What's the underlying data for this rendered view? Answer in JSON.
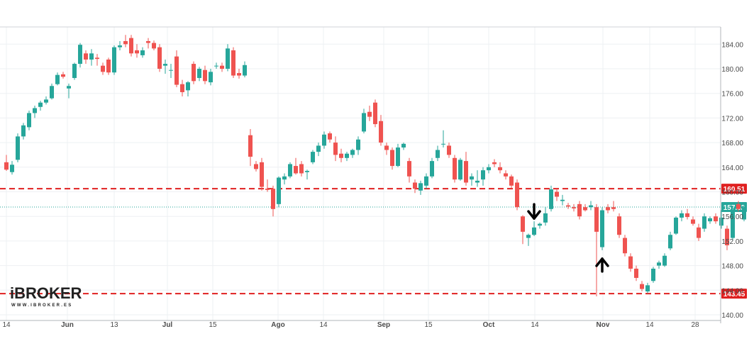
{
  "chart_data": {
    "type": "candlestick",
    "ylim": [
      139.0,
      186.0
    ],
    "y_ticks": [
      "184.00",
      "180.00",
      "176.00",
      "172.00",
      "168.00",
      "164.00",
      "160.00",
      "156.00",
      "152.00",
      "148.00",
      "144.00",
      "140.00"
    ],
    "x_ticks": [
      "14",
      "Jun",
      "13",
      "Jul",
      "15",
      "Ago",
      "14",
      "Sep",
      "15",
      "Oct",
      "14",
      "Nov",
      "14",
      "28"
    ],
    "grid": true,
    "colors": {
      "up": "#26a69a",
      "down": "#ef5350",
      "level": "#e02020",
      "last": "#26a69a"
    },
    "levels": [
      {
        "label": "160.51",
        "value": 160.51,
        "style": "dashed"
      },
      {
        "label": "143.45",
        "value": 143.45,
        "style": "dashed"
      }
    ],
    "last_price": {
      "label": "157.52",
      "value": 157.52
    },
    "arrows": [
      {
        "direction": "down",
        "index": 93,
        "near": "resistance 160.51"
      },
      {
        "direction": "up",
        "index": 105,
        "near": "support 143.45"
      }
    ],
    "candles": [
      {
        "o": 164.8,
        "h": 166.0,
        "l": 163.4,
        "c": 163.6
      },
      {
        "o": 163.2,
        "h": 165.0,
        "l": 162.8,
        "c": 164.4
      },
      {
        "o": 165.2,
        "h": 169.5,
        "l": 164.8,
        "c": 169.0
      },
      {
        "o": 169.0,
        "h": 171.2,
        "l": 168.5,
        "c": 170.8
      },
      {
        "o": 170.5,
        "h": 173.2,
        "l": 170.0,
        "c": 172.8
      },
      {
        "o": 172.8,
        "h": 174.0,
        "l": 172.0,
        "c": 173.6
      },
      {
        "o": 173.8,
        "h": 174.8,
        "l": 173.2,
        "c": 174.5
      },
      {
        "o": 174.5,
        "h": 175.5,
        "l": 174.2,
        "c": 175.0
      },
      {
        "o": 175.2,
        "h": 177.6,
        "l": 175.0,
        "c": 177.2
      },
      {
        "o": 177.5,
        "h": 179.4,
        "l": 177.3,
        "c": 179.0
      },
      {
        "o": 179.1,
        "h": 179.5,
        "l": 178.4,
        "c": 178.7
      },
      {
        "o": 176.8,
        "h": 177.6,
        "l": 175.2,
        "c": 177.2
      },
      {
        "o": 178.5,
        "h": 181.0,
        "l": 178.2,
        "c": 180.8
      },
      {
        "o": 180.8,
        "h": 184.2,
        "l": 180.2,
        "c": 183.9
      },
      {
        "o": 182.5,
        "h": 183.0,
        "l": 180.8,
        "c": 181.5
      },
      {
        "o": 181.5,
        "h": 183.2,
        "l": 180.5,
        "c": 182.5
      },
      {
        "o": 181.8,
        "h": 182.4,
        "l": 180.5,
        "c": 181.6
      },
      {
        "o": 180.5,
        "h": 181.0,
        "l": 179.0,
        "c": 179.5
      },
      {
        "o": 181.5,
        "h": 181.8,
        "l": 179.0,
        "c": 179.4
      },
      {
        "o": 179.4,
        "h": 183.8,
        "l": 179.0,
        "c": 183.5
      },
      {
        "o": 183.5,
        "h": 184.5,
        "l": 183.0,
        "c": 183.8
      },
      {
        "o": 184.5,
        "h": 185.5,
        "l": 183.5,
        "c": 184.0
      },
      {
        "o": 185.0,
        "h": 185.5,
        "l": 182.0,
        "c": 182.5
      },
      {
        "o": 183.0,
        "h": 184.0,
        "l": 181.8,
        "c": 182.5
      },
      {
        "o": 182.2,
        "h": 183.5,
        "l": 181.8,
        "c": 183.0
      },
      {
        "o": 184.5,
        "h": 185.0,
        "l": 183.3,
        "c": 184.2
      },
      {
        "o": 184.2,
        "h": 184.6,
        "l": 183.0,
        "c": 183.3
      },
      {
        "o": 183.5,
        "h": 184.0,
        "l": 179.5,
        "c": 180.0
      },
      {
        "o": 180.5,
        "h": 181.5,
        "l": 179.2,
        "c": 180.8
      },
      {
        "o": 179.8,
        "h": 180.8,
        "l": 178.5,
        "c": 179.8
      },
      {
        "o": 182.0,
        "h": 183.0,
        "l": 177.0,
        "c": 177.4
      },
      {
        "o": 177.5,
        "h": 178.2,
        "l": 175.5,
        "c": 176.2
      },
      {
        "o": 176.5,
        "h": 178.0,
        "l": 175.5,
        "c": 177.8
      },
      {
        "o": 180.8,
        "h": 181.2,
        "l": 177.5,
        "c": 178.0
      },
      {
        "o": 178.5,
        "h": 180.3,
        "l": 178.0,
        "c": 180.0
      },
      {
        "o": 179.8,
        "h": 180.5,
        "l": 177.5,
        "c": 178.0
      },
      {
        "o": 177.8,
        "h": 180.0,
        "l": 177.3,
        "c": 179.5
      },
      {
        "o": 180.5,
        "h": 181.0,
        "l": 180.0,
        "c": 180.5
      },
      {
        "o": 180.5,
        "h": 181.0,
        "l": 179.5,
        "c": 180.0
      },
      {
        "o": 180.0,
        "h": 184.0,
        "l": 179.6,
        "c": 183.3
      },
      {
        "o": 183.0,
        "h": 183.5,
        "l": 178.5,
        "c": 178.9
      },
      {
        "o": 179.3,
        "h": 180.0,
        "l": 178.4,
        "c": 178.9
      },
      {
        "o": 178.9,
        "h": 181.2,
        "l": 178.6,
        "c": 180.6
      },
      {
        "o": 169.2,
        "h": 170.2,
        "l": 164.2,
        "c": 165.7
      },
      {
        "o": 164.5,
        "h": 165.0,
        "l": 163.3,
        "c": 163.7
      },
      {
        "o": 164.8,
        "h": 165.5,
        "l": 160.2,
        "c": 160.8
      },
      {
        "o": 160.5,
        "h": 162.0,
        "l": 160.0,
        "c": 160.3
      },
      {
        "o": 160.5,
        "h": 161.0,
        "l": 156.0,
        "c": 157.2
      },
      {
        "o": 158.0,
        "h": 162.5,
        "l": 157.5,
        "c": 162.3
      },
      {
        "o": 162.0,
        "h": 163.0,
        "l": 161.2,
        "c": 162.5
      },
      {
        "o": 162.5,
        "h": 164.8,
        "l": 162.2,
        "c": 164.5
      },
      {
        "o": 164.2,
        "h": 165.5,
        "l": 162.8,
        "c": 163.0
      },
      {
        "o": 164.5,
        "h": 165.0,
        "l": 162.5,
        "c": 163.0
      },
      {
        "o": 163.2,
        "h": 163.6,
        "l": 162.0,
        "c": 163.4
      },
      {
        "o": 164.8,
        "h": 166.8,
        "l": 164.5,
        "c": 166.5
      },
      {
        "o": 166.5,
        "h": 168.0,
        "l": 165.8,
        "c": 167.5
      },
      {
        "o": 167.5,
        "h": 169.8,
        "l": 167.0,
        "c": 169.3
      },
      {
        "o": 169.5,
        "h": 169.8,
        "l": 168.0,
        "c": 168.5
      },
      {
        "o": 168.0,
        "h": 169.0,
        "l": 165.0,
        "c": 166.0
      },
      {
        "o": 166.2,
        "h": 167.0,
        "l": 164.8,
        "c": 165.5
      },
      {
        "o": 165.5,
        "h": 166.5,
        "l": 165.0,
        "c": 166.2
      },
      {
        "o": 166.0,
        "h": 167.0,
        "l": 165.5,
        "c": 166.8
      },
      {
        "o": 166.8,
        "h": 169.0,
        "l": 166.0,
        "c": 168.5
      },
      {
        "o": 169.8,
        "h": 173.5,
        "l": 169.5,
        "c": 172.8
      },
      {
        "o": 173.0,
        "h": 174.0,
        "l": 171.5,
        "c": 172.2
      },
      {
        "o": 174.5,
        "h": 175.0,
        "l": 170.5,
        "c": 171.0
      },
      {
        "o": 171.5,
        "h": 172.5,
        "l": 167.5,
        "c": 168.0
      },
      {
        "o": 167.5,
        "h": 168.0,
        "l": 166.0,
        "c": 166.8
      },
      {
        "o": 166.8,
        "h": 167.2,
        "l": 163.6,
        "c": 164.2
      },
      {
        "o": 164.2,
        "h": 167.8,
        "l": 164.0,
        "c": 167.2
      },
      {
        "o": 167.2,
        "h": 168.0,
        "l": 166.8,
        "c": 167.8
      },
      {
        "o": 165.0,
        "h": 165.5,
        "l": 161.5,
        "c": 162.5
      },
      {
        "o": 161.5,
        "h": 162.0,
        "l": 159.8,
        "c": 160.5
      },
      {
        "o": 160.2,
        "h": 161.8,
        "l": 159.5,
        "c": 161.4
      },
      {
        "o": 161.0,
        "h": 163.0,
        "l": 160.5,
        "c": 162.5
      },
      {
        "o": 162.5,
        "h": 165.5,
        "l": 162.2,
        "c": 165.0
      },
      {
        "o": 165.5,
        "h": 167.5,
        "l": 165.0,
        "c": 166.8
      },
      {
        "o": 167.8,
        "h": 170.0,
        "l": 167.2,
        "c": 167.8
      },
      {
        "o": 167.5,
        "h": 168.0,
        "l": 165.5,
        "c": 166.0
      },
      {
        "o": 165.5,
        "h": 166.0,
        "l": 161.5,
        "c": 162.0
      },
      {
        "o": 162.0,
        "h": 165.5,
        "l": 161.8,
        "c": 165.2
      },
      {
        "o": 165.0,
        "h": 166.5,
        "l": 161.0,
        "c": 161.5
      },
      {
        "o": 162.0,
        "h": 163.0,
        "l": 161.0,
        "c": 162.5
      },
      {
        "o": 161.5,
        "h": 163.5,
        "l": 160.8,
        "c": 161.8
      },
      {
        "o": 162.0,
        "h": 164.0,
        "l": 161.0,
        "c": 163.5
      },
      {
        "o": 163.5,
        "h": 164.5,
        "l": 163.0,
        "c": 164.0
      },
      {
        "o": 164.8,
        "h": 165.3,
        "l": 164.0,
        "c": 164.5
      },
      {
        "o": 164.0,
        "h": 164.8,
        "l": 163.0,
        "c": 163.5
      },
      {
        "o": 163.0,
        "h": 163.5,
        "l": 162.0,
        "c": 162.5
      },
      {
        "o": 162.5,
        "h": 162.8,
        "l": 160.5,
        "c": 161.0
      },
      {
        "o": 161.5,
        "h": 162.0,
        "l": 157.0,
        "c": 157.5
      },
      {
        "o": 156.0,
        "h": 156.2,
        "l": 151.5,
        "c": 153.5
      },
      {
        "o": 152.5,
        "h": 153.2,
        "l": 151.2,
        "c": 153.0
      },
      {
        "o": 153.0,
        "h": 155.2,
        "l": 152.8,
        "c": 154.2
      },
      {
        "o": 154.5,
        "h": 155.0,
        "l": 154.0,
        "c": 154.8
      },
      {
        "o": 155.0,
        "h": 157.5,
        "l": 154.5,
        "c": 156.5
      },
      {
        "o": 157.2,
        "h": 161.0,
        "l": 156.8,
        "c": 160.4
      },
      {
        "o": 160.0,
        "h": 160.5,
        "l": 158.5,
        "c": 159.2
      },
      {
        "o": 158.5,
        "h": 159.5,
        "l": 157.8,
        "c": 158.7
      },
      {
        "o": 157.8,
        "h": 158.2,
        "l": 157.2,
        "c": 157.6
      },
      {
        "o": 157.5,
        "h": 158.0,
        "l": 156.8,
        "c": 157.3
      },
      {
        "o": 158.0,
        "h": 158.5,
        "l": 155.5,
        "c": 156.0
      },
      {
        "o": 157.5,
        "h": 158.0,
        "l": 156.8,
        "c": 157.0
      },
      {
        "o": 157.5,
        "h": 158.5,
        "l": 157.0,
        "c": 157.8
      },
      {
        "o": 157.5,
        "h": 158.0,
        "l": 143.0,
        "c": 153.5
      },
      {
        "o": 151.0,
        "h": 157.5,
        "l": 150.5,
        "c": 157.0
      },
      {
        "o": 157.5,
        "h": 158.0,
        "l": 156.5,
        "c": 157.0
      },
      {
        "o": 157.5,
        "h": 158.5,
        "l": 156.8,
        "c": 157.2
      },
      {
        "o": 156.0,
        "h": 156.5,
        "l": 152.5,
        "c": 153.0
      },
      {
        "o": 152.5,
        "h": 153.0,
        "l": 149.5,
        "c": 150.0
      },
      {
        "o": 149.5,
        "h": 150.0,
        "l": 147.0,
        "c": 147.5
      },
      {
        "o": 147.5,
        "h": 148.0,
        "l": 145.5,
        "c": 146.0
      },
      {
        "o": 145.0,
        "h": 145.5,
        "l": 143.8,
        "c": 144.2
      },
      {
        "o": 143.8,
        "h": 145.2,
        "l": 143.5,
        "c": 144.8
      },
      {
        "o": 145.5,
        "h": 147.8,
        "l": 145.2,
        "c": 147.5
      },
      {
        "o": 148.0,
        "h": 148.8,
        "l": 147.5,
        "c": 148.5
      },
      {
        "o": 148.0,
        "h": 150.0,
        "l": 147.8,
        "c": 149.6
      },
      {
        "o": 150.8,
        "h": 153.5,
        "l": 150.5,
        "c": 153.0
      },
      {
        "o": 153.2,
        "h": 156.0,
        "l": 153.0,
        "c": 155.8
      },
      {
        "o": 155.8,
        "h": 157.0,
        "l": 155.2,
        "c": 156.5
      },
      {
        "o": 156.5,
        "h": 157.2,
        "l": 155.5,
        "c": 155.9
      },
      {
        "o": 155.5,
        "h": 156.0,
        "l": 154.5,
        "c": 154.8
      },
      {
        "o": 154.2,
        "h": 154.8,
        "l": 152.0,
        "c": 152.5
      },
      {
        "o": 154.0,
        "h": 156.5,
        "l": 153.5,
        "c": 156.0
      },
      {
        "o": 155.2,
        "h": 156.0,
        "l": 154.8,
        "c": 155.7
      },
      {
        "o": 156.0,
        "h": 156.5,
        "l": 154.8,
        "c": 155.2
      },
      {
        "o": 154.5,
        "h": 157.0,
        "l": 154.0,
        "c": 155.8
      },
      {
        "o": 154.0,
        "h": 154.5,
        "l": 150.5,
        "c": 151.3
      },
      {
        "o": 152.5,
        "h": 157.5,
        "l": 152.0,
        "c": 157.0
      },
      {
        "o": 158.0,
        "h": 158.5,
        "l": 156.8,
        "c": 157.2
      },
      {
        "o": 155.5,
        "h": 157.8,
        "l": 155.2,
        "c": 157.5
      }
    ]
  },
  "logo": {
    "text": "iBROKER",
    "subtext": "WWW.IBROKER.ES"
  }
}
